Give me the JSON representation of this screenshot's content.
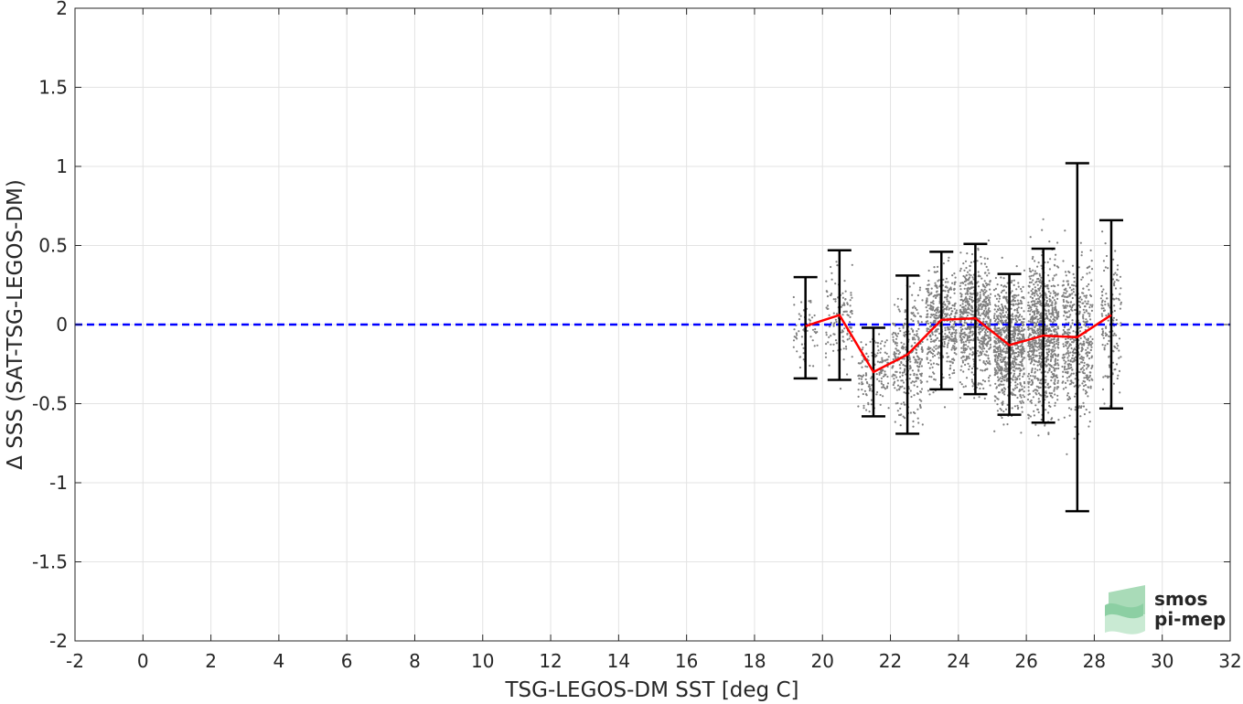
{
  "chart_data": {
    "type": "scatter",
    "xlabel": "TSG-LEGOS-DM SST [deg C]",
    "ylabel": "Δ SSS (SAT-TSG-LEGOS-DM)",
    "xlim": [
      -2,
      32
    ],
    "ylim": [
      -2,
      2
    ],
    "x_ticks": [
      -2,
      0,
      2,
      4,
      6,
      8,
      10,
      12,
      14,
      16,
      18,
      20,
      22,
      24,
      26,
      28,
      30,
      32
    ],
    "y_ticks": [
      -2,
      -1.5,
      -1,
      -0.5,
      0,
      0.5,
      1,
      1.5,
      2
    ],
    "grid": true,
    "reference_line": {
      "y": 0,
      "color": "#0000ff",
      "style": "dashed"
    },
    "scatter_color": "#808080",
    "mean_line_color": "#ff0000",
    "errorbar_color": "#000000",
    "bins": [
      {
        "x": 19.5,
        "mean": -0.01,
        "lower": -0.34,
        "upper": 0.3
      },
      {
        "x": 20.5,
        "mean": 0.06,
        "lower": -0.35,
        "upper": 0.47
      },
      {
        "x": 21.5,
        "mean": -0.3,
        "lower": -0.58,
        "upper": -0.02
      },
      {
        "x": 22.5,
        "mean": -0.19,
        "lower": -0.69,
        "upper": 0.31
      },
      {
        "x": 23.5,
        "mean": 0.03,
        "lower": -0.41,
        "upper": 0.46
      },
      {
        "x": 24.5,
        "mean": 0.04,
        "lower": -0.44,
        "upper": 0.51
      },
      {
        "x": 25.5,
        "mean": -0.13,
        "lower": -0.57,
        "upper": 0.32
      },
      {
        "x": 26.5,
        "mean": -0.07,
        "lower": -0.62,
        "upper": 0.48
      },
      {
        "x": 27.5,
        "mean": -0.08,
        "lower": -1.18,
        "upper": 1.02
      },
      {
        "x": 28.5,
        "mean": 0.06,
        "lower": -0.53,
        "upper": 0.66
      }
    ],
    "scatter_clusters": [
      {
        "x": 19.5,
        "spread_x": 0.35,
        "mean": -0.05,
        "spread_y": 0.3,
        "n": 60
      },
      {
        "x": 20.5,
        "spread_x": 0.4,
        "mean": 0.05,
        "spread_y": 0.35,
        "n": 120
      },
      {
        "x": 21.5,
        "spread_x": 0.45,
        "mean": -0.3,
        "spread_y": 0.3,
        "n": 150
      },
      {
        "x": 22.5,
        "spread_x": 0.45,
        "mean": -0.2,
        "spread_y": 0.45,
        "n": 320
      },
      {
        "x": 23.5,
        "spread_x": 0.45,
        "mean": 0.02,
        "spread_y": 0.4,
        "n": 450
      },
      {
        "x": 24.5,
        "spread_x": 0.45,
        "mean": 0.03,
        "spread_y": 0.45,
        "n": 650
      },
      {
        "x": 25.5,
        "spread_x": 0.45,
        "mean": -0.12,
        "spread_y": 0.45,
        "n": 800
      },
      {
        "x": 26.5,
        "spread_x": 0.45,
        "mean": -0.07,
        "spread_y": 0.55,
        "n": 850
      },
      {
        "x": 27.5,
        "spread_x": 0.45,
        "mean": -0.08,
        "spread_y": 0.55,
        "n": 500
      },
      {
        "x": 28.5,
        "spread_x": 0.3,
        "mean": 0.05,
        "spread_y": 0.5,
        "n": 140
      }
    ]
  },
  "logo": {
    "line1": "smos",
    "line2": "pi-mep",
    "color": "#7fc79b"
  }
}
